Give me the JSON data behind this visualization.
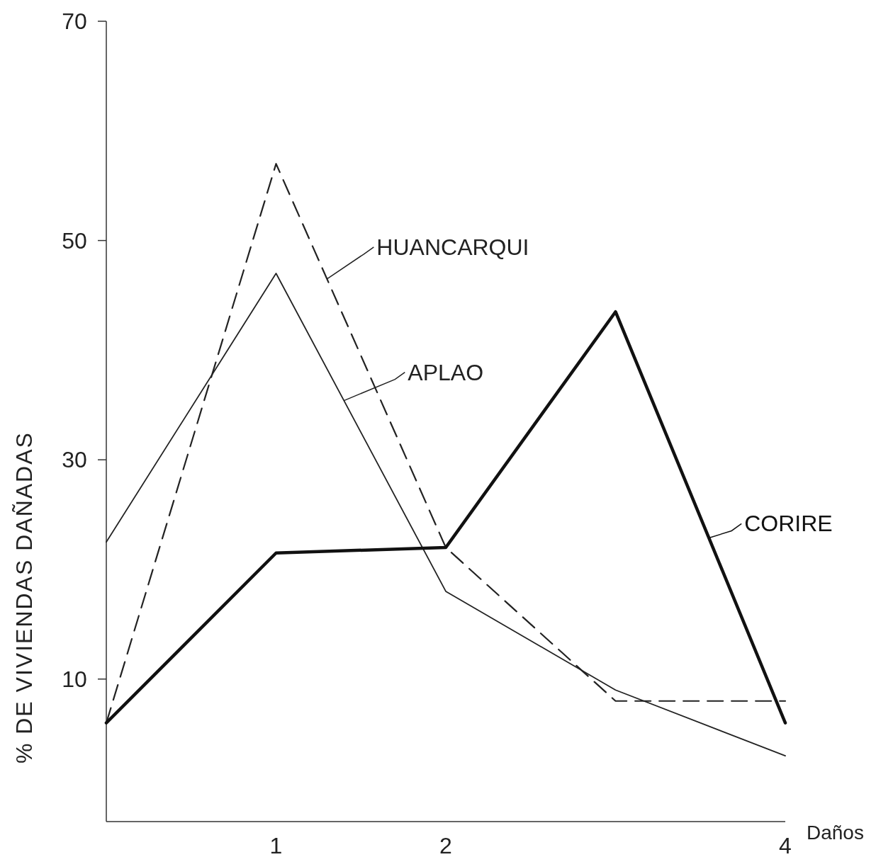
{
  "chart_data": {
    "type": "line",
    "xlabel": "Daños",
    "ylabel": "% DE VIVIENDAS DAÑADAS",
    "x": [
      0,
      1,
      2,
      3,
      4
    ],
    "xlim": [
      0,
      4
    ],
    "xticks": [
      1,
      2,
      4
    ],
    "ylim": [
      -3,
      70
    ],
    "yticks": [
      10,
      30,
      50,
      70
    ],
    "grid": false,
    "legend": "right",
    "marker": "none",
    "series": [
      {
        "name": "HUANCARQUI",
        "color": "#222222",
        "line_style": "dashed",
        "values": [
          6,
          57,
          22,
          8,
          8
        ]
      },
      {
        "name": "APLAO",
        "color": "#222222",
        "line_style": "solid",
        "values": [
          22.5,
          47,
          18,
          9,
          3
        ]
      },
      {
        "name": "CORIRE",
        "color": "#111111",
        "line_style": "solid",
        "values": [
          6,
          21.5,
          22,
          43.5,
          6
        ]
      }
    ]
  }
}
